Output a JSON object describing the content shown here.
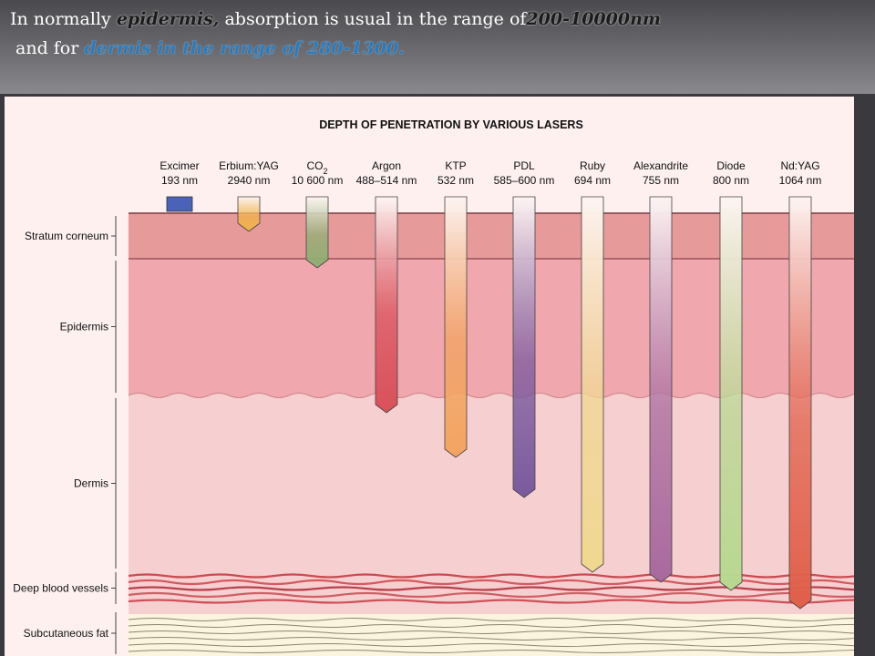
{
  "header": {
    "line1": {
      "prefix": "In normally ",
      "term": "epidermis,",
      "middle": " absorption is usual in the range of",
      "range": "200-10000nm"
    },
    "line2": {
      "prefix": "and for ",
      "highlight": "dermis in the range of 280-1300."
    }
  },
  "figure": {
    "title": "DEPTH OF PENETRATION BY VARIOUS LASERS",
    "layers": [
      "Stratum corneum",
      "Epidermis",
      "Dermis",
      "Deep blood vessels",
      "Subcutaneous fat"
    ],
    "lasers": [
      {
        "name": "Excimer",
        "wavelength": "193 nm",
        "color": "#4a62b8",
        "depth_layer": "Stratum corneum"
      },
      {
        "name": "Erbium:YAG",
        "wavelength": "2940 nm",
        "color": "#f1b24a",
        "depth_layer": "Stratum corneum"
      },
      {
        "name": "CO",
        "name_sub": "2",
        "wavelength": "10 600 nm",
        "color": "#8fae72",
        "depth_layer": "Epidermis"
      },
      {
        "name": "Argon",
        "wavelength": "488–514 nm",
        "color": "#d9505a",
        "depth_layer": "Epidermis"
      },
      {
        "name": "KTP",
        "wavelength": "532 nm",
        "color": "#f3a460",
        "depth_layer": "Dermis"
      },
      {
        "name": "PDL",
        "wavelength": "585–600 nm",
        "color": "#7a5a9e",
        "depth_layer": "Dermis"
      },
      {
        "name": "Ruby",
        "wavelength": "694 nm",
        "color": "#f0d890",
        "depth_layer": "Deep blood vessels"
      },
      {
        "name": "Alexandrite",
        "wavelength": "755 nm",
        "color": "#a86a9e",
        "depth_layer": "Deep blood vessels"
      },
      {
        "name": "Diode",
        "wavelength": "800 nm",
        "color": "#b8d890",
        "depth_layer": "Deep blood vessels"
      },
      {
        "name": "Nd:YAG",
        "wavelength": "1064 nm",
        "color": "#e0604a",
        "depth_layer": "Subcutaneous fat"
      }
    ],
    "colors": {
      "stratum": "#e79a9a",
      "epidermis": "#f0a7ad",
      "dermis": "#f6cfd0",
      "vessels": "#d9686a",
      "fat": "#fbf5df"
    }
  }
}
